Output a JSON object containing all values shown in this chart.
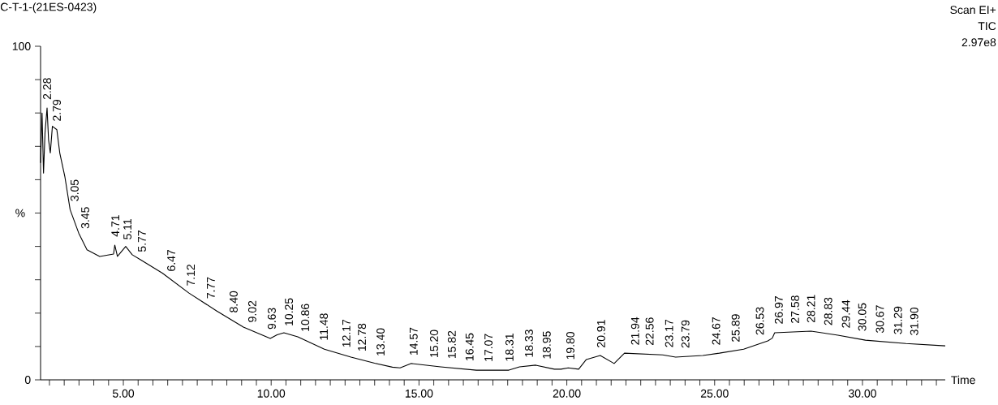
{
  "chart_data": {
    "type": "line",
    "title": "C-T-1-(21ES-0423)",
    "xlabel": "Time",
    "ylabel": "%",
    "xlim": [
      2.2,
      32.8
    ],
    "ylim": [
      0,
      100
    ],
    "xticks": [
      {
        "value": 2.5,
        "label": null
      },
      {
        "value": 3,
        "label": null
      },
      {
        "value": 3.5,
        "label": null
      },
      {
        "value": 4,
        "label": null
      },
      {
        "value": 4.5,
        "label": null
      },
      {
        "value": 5,
        "label": "5.00"
      },
      {
        "value": 5.5,
        "label": null
      },
      {
        "value": 6,
        "label": null
      },
      {
        "value": 6.5,
        "label": null
      },
      {
        "value": 7,
        "label": null
      },
      {
        "value": 7.5,
        "label": null
      },
      {
        "value": 8,
        "label": null
      },
      {
        "value": 8.5,
        "label": null
      },
      {
        "value": 9,
        "label": null
      },
      {
        "value": 9.5,
        "label": null
      },
      {
        "value": 10,
        "label": "10.00"
      },
      {
        "value": 10.5,
        "label": null
      },
      {
        "value": 11,
        "label": null
      },
      {
        "value": 11.5,
        "label": null
      },
      {
        "value": 12,
        "label": null
      },
      {
        "value": 12.5,
        "label": null
      },
      {
        "value": 13,
        "label": null
      },
      {
        "value": 13.5,
        "label": null
      },
      {
        "value": 14,
        "label": null
      },
      {
        "value": 14.5,
        "label": null
      },
      {
        "value": 15,
        "label": "15.00"
      },
      {
        "value": 15.5,
        "label": null
      },
      {
        "value": 16,
        "label": null
      },
      {
        "value": 16.5,
        "label": null
      },
      {
        "value": 17,
        "label": null
      },
      {
        "value": 17.5,
        "label": null
      },
      {
        "value": 18,
        "label": null
      },
      {
        "value": 18.5,
        "label": null
      },
      {
        "value": 19,
        "label": null
      },
      {
        "value": 19.5,
        "label": null
      },
      {
        "value": 20,
        "label": "20.00"
      },
      {
        "value": 20.5,
        "label": null
      },
      {
        "value": 21,
        "label": null
      },
      {
        "value": 21.5,
        "label": null
      },
      {
        "value": 22,
        "label": null
      },
      {
        "value": 22.5,
        "label": null
      },
      {
        "value": 23,
        "label": null
      },
      {
        "value": 23.5,
        "label": null
      },
      {
        "value": 24,
        "label": null
      },
      {
        "value": 24.5,
        "label": null
      },
      {
        "value": 25,
        "label": "25.00"
      },
      {
        "value": 25.5,
        "label": null
      },
      {
        "value": 26,
        "label": null
      },
      {
        "value": 26.5,
        "label": null
      },
      {
        "value": 27,
        "label": null
      },
      {
        "value": 27.5,
        "label": null
      },
      {
        "value": 28,
        "label": null
      },
      {
        "value": 28.5,
        "label": null
      },
      {
        "value": 29,
        "label": null
      },
      {
        "value": 29.5,
        "label": null
      },
      {
        "value": 30,
        "label": "30.00"
      },
      {
        "value": 30.5,
        "label": null
      },
      {
        "value": 31,
        "label": null
      },
      {
        "value": 31.5,
        "label": null
      },
      {
        "value": 32,
        "label": null
      },
      {
        "value": 32.5,
        "label": null
      }
    ],
    "yticks": [
      0,
      {
        "value": 10,
        "label": null
      },
      {
        "value": 20,
        "label": null
      },
      {
        "value": 30,
        "label": null
      },
      {
        "value": 40,
        "label": null
      },
      {
        "value": 50,
        "label": null
      },
      {
        "value": 60,
        "label": null
      },
      {
        "value": 70,
        "label": null
      },
      {
        "value": 80,
        "label": null
      },
      {
        "value": 90,
        "label": null
      },
      100
    ],
    "series": [
      {
        "color": "#000000",
        "x": [
          2.2,
          2.25,
          2.3,
          2.35,
          2.42,
          2.47,
          2.53,
          2.6,
          2.75,
          2.85,
          3.02,
          3.2,
          3.49,
          3.77,
          4.2,
          4.67,
          4.71,
          4.8,
          5.08,
          5.3,
          5.58,
          6.32,
          7.22,
          8.15,
          9.06,
          9.97,
          10.2,
          10.43,
          10.9,
          11.8,
          12.7,
          13.5,
          14.1,
          14.36,
          14.74,
          15.73,
          16.94,
          18.04,
          18.4,
          18.95,
          19.58,
          19.8,
          20.05,
          20.4,
          20.66,
          21.13,
          21.6,
          21.95,
          23.24,
          23.68,
          24.6,
          25.16,
          25.98,
          26.8,
          26.95,
          27.03,
          28.26,
          29.17,
          30.1,
          31.47,
          32.8
        ],
        "values": [
          65,
          80,
          62,
          74,
          81.5,
          72,
          68,
          76,
          75,
          68,
          61,
          51,
          44,
          39,
          37,
          37.7,
          40.4,
          37,
          40,
          37.5,
          36,
          32,
          26,
          20.7,
          15.8,
          12.4,
          13.5,
          14.1,
          12.9,
          9.2,
          6.8,
          5.0,
          3.8,
          3.6,
          4.9,
          3.9,
          2.9,
          2.9,
          3.9,
          4.4,
          3.2,
          3.2,
          3.6,
          3.2,
          6.1,
          7.3,
          4.9,
          8.0,
          7.5,
          6.8,
          7.3,
          8.0,
          9.2,
          11.7,
          12.5,
          14.1,
          14.6,
          13.4,
          11.9,
          10.9,
          10.2
        ]
      }
    ],
    "annotations": [
      "Scan  EI+",
      "TIC",
      "2.97e8",
      {
        "text": "2.28",
        "x": 2.42,
        "y": 81.5
      },
      {
        "text": "2.79",
        "x": 2.75,
        "y": 75
      },
      {
        "text": "3.05",
        "x": 3.35,
        "y": 51
      },
      {
        "text": "3.45",
        "x": 3.71,
        "y": 42.8
      },
      {
        "text": "4.71",
        "x": 4.73,
        "y": 40.4
      },
      {
        "text": "5.11",
        "x": 5.14,
        "y": 39.5
      },
      {
        "text": "5.77",
        "x": 5.63,
        "y": 35.8
      },
      {
        "text": "6.47",
        "x": 6.62,
        "y": 30
      },
      {
        "text": "7.12",
        "x": 7.28,
        "y": 25.6
      },
      {
        "text": "7.77",
        "x": 7.96,
        "y": 21.8
      },
      {
        "text": "8.40",
        "x": 8.73,
        "y": 17.6
      },
      {
        "text": "9.02",
        "x": 9.36,
        "y": 14.7
      },
      {
        "text": "9.63",
        "x": 10.02,
        "y": 12.6
      },
      {
        "text": "10.25",
        "x": 10.6,
        "y": 13.6
      },
      {
        "text": "10.86",
        "x": 11.15,
        "y": 11.9
      },
      {
        "text": "11.48",
        "x": 11.78,
        "y": 9.3
      },
      {
        "text": "12.17",
        "x": 12.54,
        "y": 7.2
      },
      {
        "text": "12.78",
        "x": 13.07,
        "y": 6
      },
      {
        "text": "13.40",
        "x": 13.7,
        "y": 4.6
      },
      {
        "text": "14.57",
        "x": 14.82,
        "y": 4.8
      },
      {
        "text": "15.20",
        "x": 15.51,
        "y": 4.1
      },
      {
        "text": "15.82",
        "x": 16.11,
        "y": 3.8
      },
      {
        "text": "16.45",
        "x": 16.71,
        "y": 3.1
      },
      {
        "text": "17.07",
        "x": 17.35,
        "y": 2.9
      },
      {
        "text": "18.31",
        "x": 18.06,
        "y": 3
      },
      {
        "text": "18.33",
        "x": 18.72,
        "y": 4.2
      },
      {
        "text": "18.95",
        "x": 19.32,
        "y": 3.7
      },
      {
        "text": "19.80",
        "x": 20.12,
        "y": 3.5
      },
      {
        "text": "20.91",
        "x": 21.16,
        "y": 7.1
      },
      {
        "text": "21.94",
        "x": 22.31,
        "y": 7.9
      },
      {
        "text": "22.56",
        "x": 22.8,
        "y": 7.8
      },
      {
        "text": "23.17",
        "x": 23.46,
        "y": 7.2
      },
      {
        "text": "23.79",
        "x": 24.01,
        "y": 7
      },
      {
        "text": "24.67",
        "x": 25.05,
        "y": 7.9
      },
      {
        "text": "25.89",
        "x": 25.71,
        "y": 8.8
      },
      {
        "text": "26.53",
        "x": 26.53,
        "y": 10.9
      },
      {
        "text": "26.97",
        "x": 27.17,
        "y": 14.2
      },
      {
        "text": "27.58",
        "x": 27.72,
        "y": 14.4
      },
      {
        "text": "28.21",
        "x": 28.26,
        "y": 14.6
      },
      {
        "text": "28.83",
        "x": 28.84,
        "y": 13.8
      },
      {
        "text": "29.44",
        "x": 29.44,
        "y": 13
      },
      {
        "text": "30.05",
        "x": 29.99,
        "y": 12.1
      },
      {
        "text": "30.67",
        "x": 30.59,
        "y": 11.5
      },
      {
        "text": "31.29",
        "x": 31.2,
        "y": 11.1
      },
      {
        "text": "31.90",
        "x": 31.75,
        "y": 10.8
      }
    ]
  }
}
